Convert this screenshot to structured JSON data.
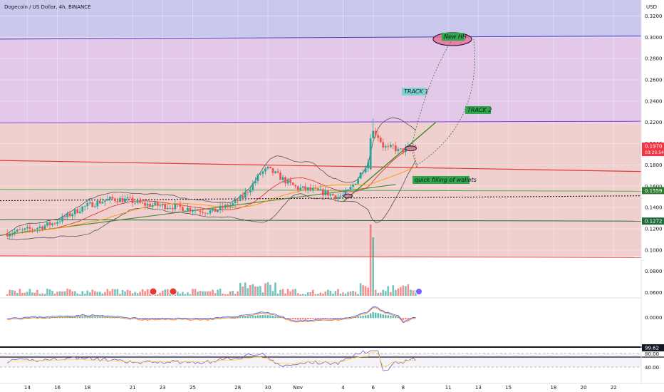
{
  "header": {
    "symbol_title": "Dogecoin / US Dollar, 4h, BINANCE",
    "currency": "USD"
  },
  "colors": {
    "up": "#26a69a",
    "down": "#ef5350",
    "upper_zone": "#c9c8ec",
    "mid_zone": "#e3c8ea",
    "low_zone": "#f0cfcf",
    "price_tag": "#f23645",
    "level_tag": "#1e6b3c",
    "track1": "#7fd3cf",
    "track2": "#2ea84a"
  },
  "chart_data": {
    "type": "candlestick",
    "title": "Dogecoin / US Dollar, 4h, BINANCE",
    "ylabel": "USD",
    "ylim": [
      0.055,
      0.335
    ],
    "y_ticks": [
      0.32,
      0.3,
      0.28,
      0.26,
      0.24,
      0.22,
      0.2,
      0.18,
      0.16,
      0.14,
      0.12,
      0.1,
      0.08,
      0.06
    ],
    "y_tick_labels": [
      "0.3200",
      "0.3000",
      "0.2800",
      "0.2600",
      "0.2400",
      "0.2200",
      "0.2000",
      "0.1800",
      "0.1600",
      "0.1400",
      "0.1200",
      "0.1000",
      "0.0800",
      "0.0600"
    ],
    "x_ticks": [
      {
        "label": "14",
        "t": 8
      },
      {
        "label": "16",
        "t": 20
      },
      {
        "label": "18",
        "t": 32
      },
      {
        "label": "21",
        "t": 50
      },
      {
        "label": "23",
        "t": 62
      },
      {
        "label": "25",
        "t": 74
      },
      {
        "label": "28",
        "t": 92
      },
      {
        "label": "30",
        "t": 104
      },
      {
        "label": "Nov",
        "t": 116
      },
      {
        "label": "4",
        "t": 134
      },
      {
        "label": "6",
        "t": 146
      },
      {
        "label": "8",
        "t": 158
      },
      {
        "label": "11",
        "t": 176
      },
      {
        "label": "13",
        "t": 188
      },
      {
        "label": "15",
        "t": 200
      },
      {
        "label": "18",
        "t": 218
      },
      {
        "label": "20",
        "t": 230
      },
      {
        "label": "22",
        "t": 242
      }
    ],
    "t_range": [
      -2.9,
      253
    ],
    "price_path": [
      [
        0,
        0.116
      ],
      [
        6,
        0.118
      ],
      [
        12,
        0.121
      ],
      [
        18,
        0.125
      ],
      [
        24,
        0.132
      ],
      [
        30,
        0.14
      ],
      [
        36,
        0.145
      ],
      [
        42,
        0.148
      ],
      [
        48,
        0.147
      ],
      [
        54,
        0.143
      ],
      [
        60,
        0.142
      ],
      [
        66,
        0.141
      ],
      [
        72,
        0.139
      ],
      [
        78,
        0.137
      ],
      [
        82,
        0.136
      ],
      [
        86,
        0.14
      ],
      [
        90,
        0.143
      ],
      [
        94,
        0.15
      ],
      [
        98,
        0.162
      ],
      [
        101,
        0.172
      ],
      [
        104,
        0.176
      ],
      [
        108,
        0.17
      ],
      [
        112,
        0.163
      ],
      [
        116,
        0.158
      ],
      [
        120,
        0.157
      ],
      [
        124,
        0.155
      ],
      [
        128,
        0.153
      ],
      [
        132,
        0.15
      ],
      [
        134,
        0.151
      ],
      [
        136,
        0.155
      ],
      [
        138,
        0.161
      ],
      [
        140,
        0.168
      ],
      [
        142,
        0.176
      ],
      [
        144,
        0.183
      ],
      [
        145,
        0.2
      ],
      [
        146,
        0.213
      ],
      [
        148,
        0.207
      ],
      [
        150,
        0.198
      ],
      [
        152,
        0.195
      ],
      [
        154,
        0.197
      ],
      [
        156,
        0.193
      ],
      [
        158,
        0.194
      ],
      [
        160,
        0.196
      ],
      [
        162,
        0.197
      ],
      [
        163,
        0.197
      ]
    ],
    "last_price": 0.197,
    "price_label": "0.1970",
    "countdown": "03:25:54",
    "level_labels": [
      {
        "label": "0.1559",
        "value": 0.1559
      },
      {
        "label": "0.1272",
        "value": 0.1272
      }
    ],
    "volume_spike_t": 145,
    "oscillator": {
      "zero_label": "0.0000"
    },
    "rsi": {
      "value_label": "99.62",
      "upper_label": "80.00",
      "lower_label": "40.00"
    },
    "annotations": [
      {
        "text": "New HH",
        "style": "green-box"
      },
      {
        "text": "TRACK 1",
        "style": "cyan-box"
      },
      {
        "text": "TRACK 2",
        "style": "green-box"
      },
      {
        "text": "quick filling of wallets",
        "style": "green-box"
      }
    ]
  }
}
